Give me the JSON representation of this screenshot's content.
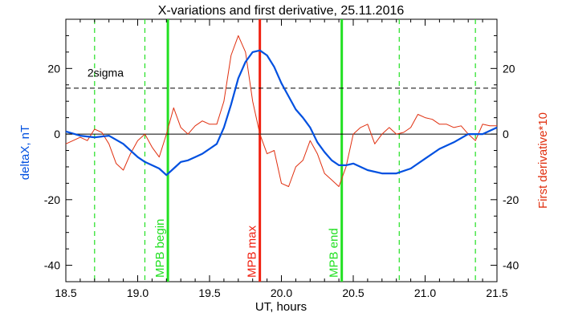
{
  "chart_data": {
    "type": "line",
    "title": "X-variations and first derivative, 25.11.2016",
    "xlabel": "UT, hours",
    "ylabel": "deltaX, nT",
    "y2label": "First derivative*10",
    "xlim": [
      18.5,
      21.5
    ],
    "ylim": [
      -45,
      35
    ],
    "xticks": [
      "18.5",
      "19.0",
      "19.5",
      "20.0",
      "20.5",
      "21.0",
      "21.5"
    ],
    "xtick_values": [
      18.5,
      19.0,
      19.5,
      20.0,
      20.5,
      21.0,
      21.5
    ],
    "yticks": [
      "-40",
      "-20",
      "0",
      "20"
    ],
    "ytick_values": [
      -40,
      -20,
      0,
      20
    ],
    "y2ticks": [
      "-40",
      "-20",
      "0",
      "20"
    ],
    "grid": false,
    "colors": {
      "deltaX": "#0050e0",
      "derivative": "#e03010",
      "mpb_boundary": "#22e022",
      "mpb_max": "#f02010",
      "axis": "#000000"
    },
    "series": [
      {
        "name": "deltaX, nT",
        "axis": "left",
        "color": "#0050e0",
        "x": [
          18.5,
          18.6,
          18.7,
          18.8,
          18.9,
          19.0,
          19.05,
          19.1,
          19.15,
          19.2,
          19.25,
          19.3,
          19.35,
          19.4,
          19.45,
          19.5,
          19.55,
          19.6,
          19.65,
          19.7,
          19.75,
          19.8,
          19.85,
          19.9,
          19.95,
          20.0,
          20.05,
          20.1,
          20.15,
          20.2,
          20.25,
          20.3,
          20.35,
          20.4,
          20.45,
          20.5,
          20.6,
          20.7,
          20.8,
          20.9,
          21.0,
          21.1,
          21.2,
          21.3,
          21.4,
          21.5
        ],
        "y": [
          0.8,
          -0.5,
          -1.0,
          -0.5,
          -3.0,
          -7.0,
          -8.5,
          -9.5,
          -10.5,
          -12.5,
          -10.5,
          -8.5,
          -8.0,
          -7.0,
          -6.0,
          -4.5,
          -3.0,
          2.0,
          9.0,
          17.0,
          22.0,
          25.0,
          25.5,
          24.0,
          20.5,
          15.5,
          11.5,
          7.5,
          5.0,
          2.0,
          -2.5,
          -5.5,
          -8.0,
          -9.5,
          -9.5,
          -9.0,
          -11.0,
          -12.0,
          -12.0,
          -10.5,
          -7.5,
          -4.5,
          -2.5,
          0.0,
          0.0,
          2.0
        ]
      },
      {
        "name": "First derivative*10",
        "axis": "right",
        "color": "#e03010",
        "x": [
          18.5,
          18.6,
          18.65,
          18.7,
          18.75,
          18.8,
          18.85,
          18.9,
          18.95,
          19.0,
          19.05,
          19.1,
          19.15,
          19.2,
          19.25,
          19.3,
          19.35,
          19.4,
          19.45,
          19.5,
          19.55,
          19.6,
          19.65,
          19.7,
          19.75,
          19.8,
          19.85,
          19.9,
          19.95,
          20.0,
          20.05,
          20.1,
          20.15,
          20.2,
          20.25,
          20.3,
          20.35,
          20.4,
          20.45,
          20.5,
          20.55,
          20.6,
          20.65,
          20.7,
          20.75,
          20.8,
          20.85,
          20.9,
          20.95,
          21.0,
          21.05,
          21.1,
          21.15,
          21.2,
          21.25,
          21.3,
          21.35,
          21.4,
          21.45,
          21.5
        ],
        "y": [
          -3.0,
          -1.0,
          -2.0,
          1.5,
          0.5,
          -3.0,
          -9.0,
          -11.0,
          -6.0,
          -2.0,
          0.0,
          -4.0,
          -7.0,
          0.0,
          8.0,
          2.0,
          0.0,
          2.5,
          4.0,
          3.0,
          3.0,
          10.0,
          24.0,
          30.0,
          25.0,
          10.0,
          0.0,
          -6.0,
          -5.0,
          -15.0,
          -16.0,
          -10.0,
          -8.0,
          -2.0,
          -6.0,
          -12.0,
          -14.0,
          -16.0,
          -10.0,
          0.0,
          2.0,
          3.0,
          -3.0,
          0.0,
          2.0,
          0.0,
          0.5,
          2.0,
          6.0,
          5.0,
          4.5,
          3.0,
          3.0,
          2.0,
          2.5,
          0.0,
          -2.0,
          3.0,
          2.5,
          2.5
        ]
      }
    ],
    "horizontal_lines": [
      {
        "y": 14,
        "style": "dashed",
        "color": "#000000"
      },
      {
        "y": 0,
        "style": "solid",
        "color": "#000000"
      }
    ],
    "vertical_lines": [
      {
        "x": 18.7,
        "style": "dashed",
        "color": "#22e022"
      },
      {
        "x": 19.05,
        "style": "dashed",
        "color": "#22e022"
      },
      {
        "x": 19.21,
        "style": "solid",
        "color": "#22e022",
        "label": "MPB begin"
      },
      {
        "x": 19.85,
        "style": "solid",
        "color": "#f02010",
        "label": "MPB max"
      },
      {
        "x": 20.42,
        "style": "solid",
        "color": "#22e022",
        "label": "MPB end"
      },
      {
        "x": 20.82,
        "style": "dashed",
        "color": "#22e022"
      },
      {
        "x": 21.35,
        "style": "dashed",
        "color": "#22e022"
      }
    ],
    "annotations": [
      {
        "text": "2sigma",
        "x": 18.65,
        "y": 17.5
      }
    ]
  }
}
